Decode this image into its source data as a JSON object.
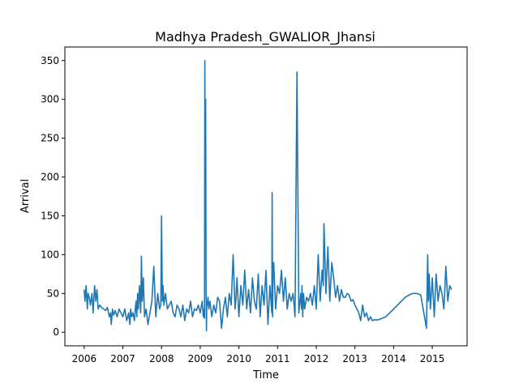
{
  "chart_data": {
    "type": "line",
    "title": "Madhya Pradesh_GWALIOR_Jhansi",
    "xlabel": "Time",
    "ylabel": "Arrival",
    "xlim": [
      2005.5,
      2015.9
    ],
    "ylim": [
      -17.5,
      367.5
    ],
    "xticks": [
      2006,
      2007,
      2008,
      2009,
      2010,
      2011,
      2012,
      2013,
      2014,
      2015
    ],
    "xtick_labels": [
      "2006",
      "2007",
      "2008",
      "2009",
      "2010",
      "2011",
      "2012",
      "2013",
      "2014",
      "2015"
    ],
    "yticks": [
      0,
      50,
      100,
      150,
      200,
      250,
      300,
      350
    ],
    "ytick_labels": [
      "0",
      "50",
      "100",
      "150",
      "200",
      "250",
      "300",
      "350"
    ],
    "grid": false,
    "legend": "none",
    "line_color": "#1f77b4",
    "series": [
      {
        "x": [
          2006.0,
          2006.02,
          2006.05,
          2006.08,
          2006.1,
          2006.13,
          2006.16,
          2006.2,
          2006.23,
          2006.27,
          2006.3,
          2006.33,
          2006.36,
          2006.4,
          2006.45,
          2006.5,
          2006.55,
          2006.6,
          2006.65,
          2006.68,
          2006.7,
          2006.73,
          2006.76,
          2006.8,
          2006.85,
          2006.9,
          2006.95,
          2007.0,
          2007.05,
          2007.1,
          2007.15,
          2007.18,
          2007.2,
          2007.23,
          2007.26,
          2007.3,
          2007.32,
          2007.34,
          2007.36,
          2007.38,
          2007.4,
          2007.43,
          2007.46,
          2007.48,
          2007.5,
          2007.53,
          2007.56,
          2007.6,
          2007.65,
          2007.7,
          2007.75,
          2007.8,
          2007.85,
          2007.9,
          2007.95,
          2007.98,
          2008.0,
          2008.02,
          2008.04,
          2008.06,
          2008.1,
          2008.15,
          2008.2,
          2008.25,
          2008.3,
          2008.35,
          2008.4,
          2008.45,
          2008.5,
          2008.55,
          2008.6,
          2008.65,
          2008.7,
          2008.75,
          2008.8,
          2008.85,
          2008.9,
          2008.95,
          2009.0,
          2009.05,
          2009.08,
          2009.1,
          2009.11,
          2009.12,
          2009.13,
          2009.14,
          2009.15,
          2009.16,
          2009.17,
          2009.18,
          2009.2,
          2009.22,
          2009.25,
          2009.3,
          2009.35,
          2009.4,
          2009.45,
          2009.5,
          2009.55,
          2009.6,
          2009.65,
          2009.7,
          2009.75,
          2009.8,
          2009.85,
          2009.9,
          2009.92,
          2009.95,
          2010.0,
          2010.05,
          2010.1,
          2010.15,
          2010.2,
          2010.25,
          2010.3,
          2010.35,
          2010.4,
          2010.45,
          2010.5,
          2010.55,
          2010.6,
          2010.65,
          2010.7,
          2010.75,
          2010.8,
          2010.85,
          2010.86,
          2010.87,
          2010.88,
          2010.9,
          2010.95,
          2011.0,
          2011.05,
          2011.1,
          2011.15,
          2011.2,
          2011.25,
          2011.3,
          2011.35,
          2011.4,
          2011.45,
          2011.5,
          2011.55,
          2011.6,
          2011.62,
          2011.63,
          2011.64,
          2011.65,
          2011.67,
          2011.7,
          2011.75,
          2011.8,
          2011.85,
          2011.9,
          2011.95,
          2012.0,
          2012.05,
          2012.1,
          2012.15,
          2012.18,
          2012.2,
          2012.25,
          2012.3,
          2012.35,
          2012.4,
          2012.45,
          2012.5,
          2012.55,
          2012.6,
          2012.65,
          2012.7,
          2012.75,
          2012.8,
          2012.85,
          2012.9,
          2012.95,
          2013.0,
          2013.05,
          2013.1,
          2013.15,
          2013.2,
          2013.25,
          2013.3,
          2013.35,
          2013.4,
          2013.45,
          2013.5,
          2013.6,
          2013.7,
          2013.8,
          2013.9,
          2014.0,
          2014.1,
          2014.2,
          2014.3,
          2014.4,
          2014.5,
          2014.6,
          2014.7,
          2014.8,
          2014.85,
          2014.88,
          2014.9,
          2014.92,
          2014.95,
          2015.0,
          2015.05,
          2015.1,
          2015.15,
          2015.2,
          2015.25,
          2015.3,
          2015.35,
          2015.4,
          2015.45,
          2015.5
        ],
        "y": [
          55,
          40,
          60,
          30,
          50,
          45,
          35,
          50,
          25,
          60,
          40,
          55,
          30,
          35,
          32,
          30,
          28,
          32,
          20,
          25,
          10,
          30,
          22,
          28,
          20,
          30,
          25,
          20,
          30,
          15,
          25,
          10,
          30,
          20,
          25,
          15,
          30,
          40,
          20,
          50,
          30,
          60,
          25,
          98,
          40,
          70,
          20,
          30,
          10,
          25,
          40,
          85,
          20,
          50,
          30,
          35,
          150,
          40,
          60,
          35,
          50,
          30,
          35,
          40,
          25,
          20,
          35,
          30,
          20,
          35,
          15,
          30,
          25,
          40,
          20,
          30,
          28,
          35,
          25,
          40,
          20,
          30,
          18,
          350,
          140,
          300,
          60,
          2,
          40,
          35,
          45,
          30,
          40,
          20,
          35,
          25,
          45,
          40,
          5,
          30,
          45,
          20,
          50,
          35,
          100,
          30,
          40,
          70,
          20,
          60,
          35,
          80,
          30,
          55,
          25,
          70,
          40,
          30,
          75,
          20,
          60,
          35,
          80,
          10,
          60,
          25,
          180,
          20,
          70,
          90,
          30,
          60,
          50,
          80,
          40,
          70,
          30,
          50,
          40,
          50,
          20,
          335,
          25,
          50,
          30,
          60,
          40,
          20,
          50,
          30,
          45,
          40,
          50,
          35,
          60,
          30,
          100,
          40,
          80,
          60,
          140,
          50,
          110,
          40,
          90,
          70,
          45,
          60,
          40,
          55,
          45,
          45,
          50,
          48,
          40,
          42,
          35,
          30,
          25,
          15,
          35,
          20,
          25,
          15,
          20,
          15,
          16,
          16,
          18,
          20,
          25,
          30,
          35,
          40,
          45,
          48,
          50,
          50,
          48,
          20,
          5,
          100,
          40,
          75,
          30,
          70,
          20,
          75,
          40,
          60,
          50,
          30,
          85,
          40,
          60,
          55
        ]
      }
    ]
  }
}
